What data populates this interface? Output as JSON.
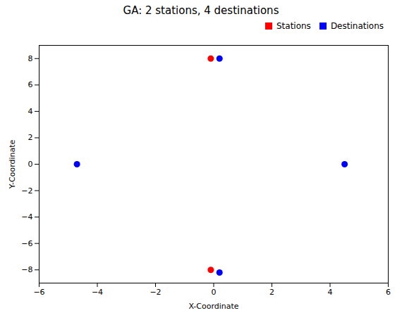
{
  "chart_data": {
    "type": "scatter",
    "title": "GA: 2 stations, 4 destinations",
    "xlabel": "X-Coordinate",
    "ylabel": "Y-Coordinate",
    "series": [
      {
        "name": "Stations",
        "color": "#ff0000",
        "x": [
          -0.1,
          -0.1
        ],
        "values": [
          8.0,
          -8.0
        ]
      },
      {
        "name": "Destinations",
        "color": "#0000ff",
        "x": [
          0.2,
          -4.7,
          4.5,
          0.2
        ],
        "values": [
          8.0,
          0.0,
          0.0,
          -8.2
        ]
      }
    ],
    "xlim": [
      -6,
      6
    ],
    "ylim": [
      -9,
      9
    ],
    "xticks": [
      -6,
      -4,
      -2,
      0,
      2,
      4,
      6
    ],
    "yticks": [
      -8,
      -6,
      -4,
      -2,
      0,
      2,
      4,
      6,
      8
    ],
    "legend": "upper right",
    "grid": false
  }
}
